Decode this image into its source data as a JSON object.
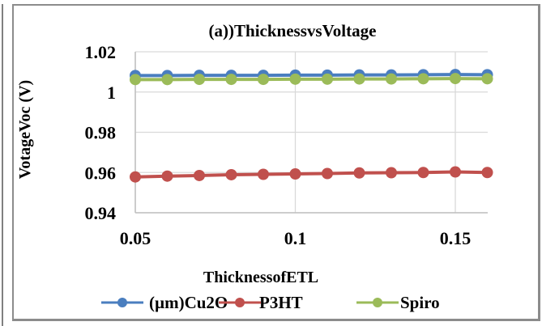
{
  "chart_data": {
    "type": "line",
    "title": "(a))ThicknessvsVoltage",
    "xlabel": "ThicknessofETL",
    "ylabel": "VotageVoc (V)",
    "x": [
      0.05,
      0.06,
      0.07,
      0.08,
      0.09,
      0.1,
      0.11,
      0.12,
      0.13,
      0.14,
      0.15,
      0.16
    ],
    "xlim": [
      0.05,
      0.16
    ],
    "ylim": [
      0.94,
      1.02
    ],
    "x_ticks": [
      0.05,
      0.1,
      0.15
    ],
    "x_tick_labels": [
      "0.05",
      "0.1",
      "0.15"
    ],
    "y_ticks": [
      0.94,
      0.96,
      0.98,
      1.0,
      1.02
    ],
    "y_tick_labels": [
      "0.94",
      "0.96",
      "0.98",
      "1",
      "1.02"
    ],
    "grid": true,
    "legend_position": "bottom",
    "series": [
      {
        "name": "(µm)Cu2O",
        "color": "#4a7ebf",
        "values": [
          1.0082,
          1.0082,
          1.0083,
          1.0083,
          1.0083,
          1.0084,
          1.0084,
          1.0085,
          1.0085,
          1.0086,
          1.0087,
          1.0086
        ]
      },
      {
        "name": "P3HT",
        "color": "#c0504d",
        "values": [
          0.9578,
          0.9582,
          0.9585,
          0.9589,
          0.9591,
          0.9593,
          0.9595,
          0.9598,
          0.9599,
          0.96,
          0.9603,
          0.96
        ]
      },
      {
        "name": "Spiro",
        "color": "#9bbb59",
        "values": [
          1.0062,
          1.0062,
          1.0063,
          1.0063,
          1.0063,
          1.0064,
          1.0064,
          1.0065,
          1.0065,
          1.0066,
          1.0067,
          1.0066
        ]
      }
    ]
  }
}
